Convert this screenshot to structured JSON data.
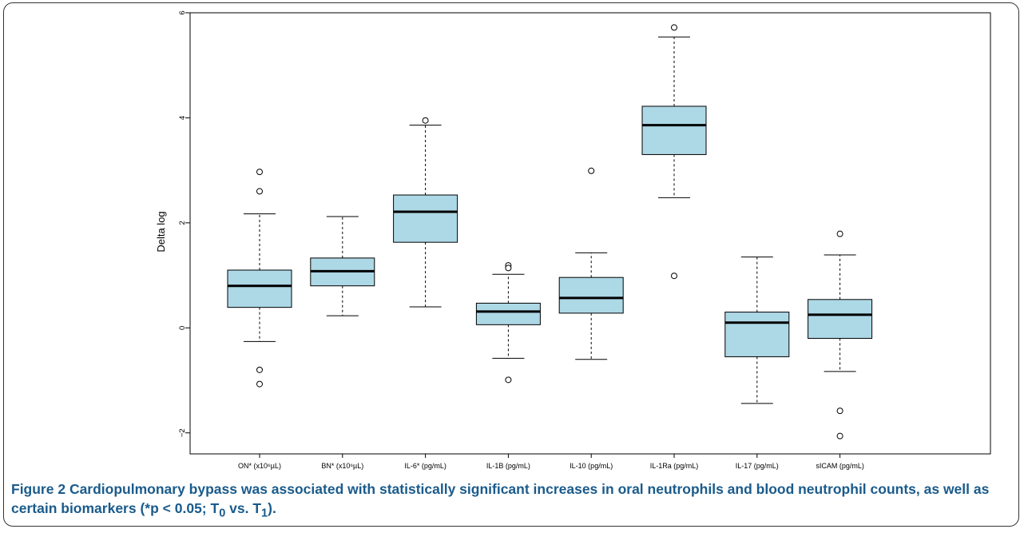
{
  "chart_data": {
    "type": "boxplot",
    "ylabel": "Delta log",
    "ylim": [
      -2.4,
      6.0
    ],
    "yticks": [
      -2,
      0,
      2,
      4,
      6
    ],
    "box_color": "#add8e6",
    "categories": [
      "ON* (x10⁶µL)",
      "BN* (x10⁶µL)",
      "IL-6* (pg/mL)",
      "IL-1B (pg/mL)",
      "IL-10 (pg/mL)",
      "IL-1Ra (pg/mL)",
      "IL-17 (pg/mL)",
      "sICAM (pg/mL)"
    ],
    "boxes": [
      {
        "whisker_low": -0.26,
        "q1": 0.39,
        "median": 0.8,
        "q3": 1.1,
        "whisker_high": 2.17,
        "outliers": [
          2.97,
          2.6,
          -0.8,
          -1.07
        ]
      },
      {
        "whisker_low": 0.23,
        "q1": 0.8,
        "median": 1.08,
        "q3": 1.33,
        "whisker_high": 2.12,
        "outliers": []
      },
      {
        "whisker_low": 0.4,
        "q1": 1.63,
        "median": 2.21,
        "q3": 2.53,
        "whisker_high": 3.86,
        "outliers": [
          3.95
        ]
      },
      {
        "whisker_low": -0.58,
        "q1": 0.06,
        "median": 0.31,
        "q3": 0.47,
        "whisker_high": 1.02,
        "outliers": [
          1.19,
          1.14,
          -0.99
        ]
      },
      {
        "whisker_low": -0.6,
        "q1": 0.28,
        "median": 0.57,
        "q3": 0.96,
        "whisker_high": 1.43,
        "outliers": [
          2.99
        ]
      },
      {
        "whisker_low": 2.48,
        "q1": 3.3,
        "median": 3.86,
        "q3": 4.22,
        "whisker_high": 5.54,
        "outliers": [
          5.72,
          0.99
        ]
      },
      {
        "whisker_low": -1.44,
        "q1": -0.55,
        "median": 0.1,
        "q3": 0.3,
        "whisker_high": 1.35,
        "outliers": []
      },
      {
        "whisker_low": -0.83,
        "q1": -0.2,
        "median": 0.25,
        "q3": 0.54,
        "whisker_high": 1.39,
        "outliers": [
          1.79,
          -1.58,
          -2.06
        ]
      }
    ]
  },
  "caption": {
    "lead": "Figure 2",
    "body_pre": " Cardiopulmonary bypass was associated with statistically significant increases in oral neutrophils and blood neutrophil counts, as well as certain biomarkers (*p < 0.05; T",
    "sub0": "0",
    "body_mid": " vs. T",
    "sub1": "1",
    "body_end": ")."
  }
}
